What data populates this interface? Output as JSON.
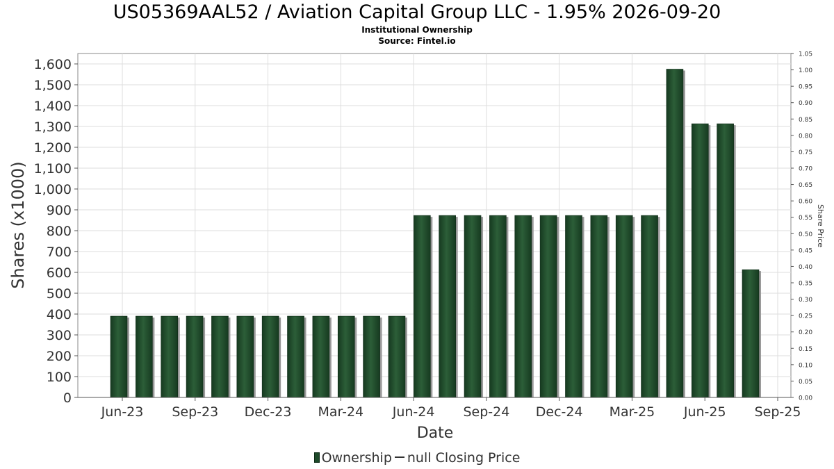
{
  "header": {
    "title": "US05369AAL52 / Aviation Capital Group LLC - 1.95% 2026-09-20",
    "subtitle1": "Institutional Ownership",
    "subtitle2": "Source: Fintel.io"
  },
  "legend": {
    "ownership": "Ownership",
    "closing": "null Closing Price"
  },
  "chart_data": {
    "type": "bar",
    "xlabel": "Date",
    "ylabel": "Shares (x1000)",
    "y2label": "Share Price",
    "ylim": [
      0,
      1650
    ],
    "y2lim": [
      0,
      1.05
    ],
    "grid": true,
    "legend_position": "bottom",
    "bar_color": "#1e4a2a",
    "yticks": [
      0,
      100,
      200,
      300,
      400,
      500,
      600,
      700,
      800,
      900,
      1000,
      1100,
      1200,
      1300,
      1400,
      1500,
      1600
    ],
    "ytick_labels": [
      "0",
      "100",
      "200",
      "300",
      "400",
      "500",
      "600",
      "700",
      "800",
      "900",
      "1,000",
      "1,100",
      "1,200",
      "1,300",
      "1,400",
      "1,500",
      "1,600"
    ],
    "y2ticks": [
      "0.00",
      "0.05",
      "0.10",
      "0.15",
      "0.20",
      "0.25",
      "0.30",
      "0.35",
      "0.40",
      "0.45",
      "0.50",
      "0.55",
      "0.60",
      "0.65",
      "0.70",
      "0.75",
      "0.80",
      "0.85",
      "0.90",
      "0.95",
      "1.00",
      "1.05"
    ],
    "xticks": [
      "Jun-23",
      "Sep-23",
      "Dec-23",
      "Mar-24",
      "Jun-24",
      "Sep-24",
      "Dec-24",
      "Mar-25",
      "Jun-25",
      "Sep-25"
    ],
    "series": [
      {
        "name": "Ownership",
        "values": [
          390,
          390,
          390,
          390,
          390,
          390,
          390,
          390,
          390,
          390,
          390,
          390,
          873,
          873,
          873,
          873,
          873,
          873,
          873,
          873,
          873,
          873,
          1575,
          1313,
          1313,
          613
        ]
      }
    ]
  }
}
